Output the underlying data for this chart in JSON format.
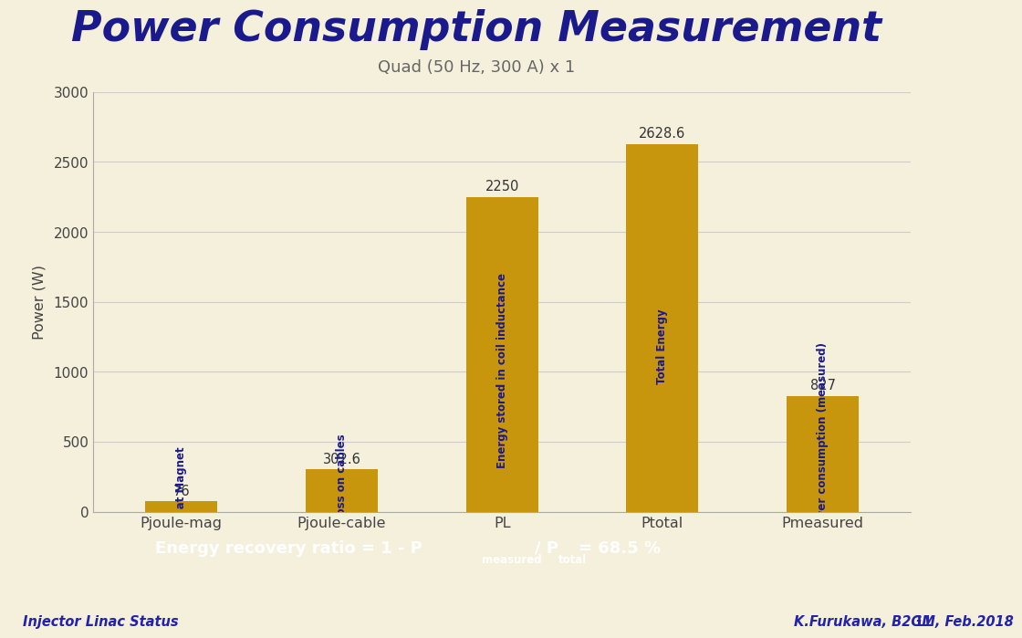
{
  "title": "Power Consumption Measurement",
  "subtitle": "Quad (50 Hz, 300 A) x 1",
  "categories": [
    "Pjoule-mag",
    "Pjoule-cable",
    "PL",
    "Ptotal",
    "Pmeasured"
  ],
  "values": [
    76,
    302.6,
    2250,
    2628.6,
    827
  ],
  "bar_labels": [
    "76",
    "302.6",
    "2250",
    "2628.6",
    "827"
  ],
  "bar_color": "#C8960C",
  "bar_annotations": [
    "Heat loss at Magnet",
    "Heat loss on cables",
    "Energy stored in coil inductance",
    "Total Energy",
    "Actual power consumption (measured)"
  ],
  "ylabel": "Power (W)",
  "ylim": [
    0,
    3000
  ],
  "yticks": [
    0,
    500,
    1000,
    1500,
    2000,
    2500,
    3000
  ],
  "background_color": "#F5F0DC",
  "title_color": "#1A1A8C",
  "subtitle_color": "#666666",
  "annotation_text_color": "#333333",
  "footer_left": "Injector Linac Status",
  "footer_right": "K.Furukawa, B2GM, Feb.2018",
  "footer_page": "11",
  "grid_color": "#CCCCCC",
  "header_line_color": "#2222AA",
  "footer_line_color": "#2222AA",
  "box_bg": "#000000",
  "box_text_color": "#FFFFFF"
}
